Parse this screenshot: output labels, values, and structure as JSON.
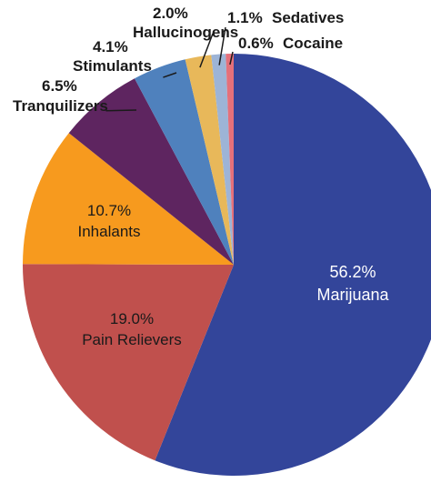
{
  "chart_data": {
    "type": "pie",
    "slices": [
      {
        "label": "Marijuana",
        "pct_label": "56.2%",
        "value": 56.2,
        "color": "#33459a"
      },
      {
        "label": "Pain Relievers",
        "pct_label": "19.0%",
        "value": 19.0,
        "color": "#c0504d"
      },
      {
        "label": "Inhalants",
        "pct_label": "10.7%",
        "value": 10.7,
        "color": "#f79a1e"
      },
      {
        "label": "Tranquilizers",
        "pct_label": "6.5%",
        "value": 6.5,
        "color": "#5e2560"
      },
      {
        "label": "Stimulants",
        "pct_label": "4.1%",
        "value": 4.1,
        "color": "#4f81bd"
      },
      {
        "label": "Hallucinogens",
        "pct_label": "2.0%",
        "value": 2.0,
        "color": "#e8b85a"
      },
      {
        "label": "Sedatives",
        "pct_label": "1.1%",
        "value": 1.1,
        "color": "#9db4d6"
      },
      {
        "label": "Cocaine",
        "pct_label": "0.6%",
        "value": 0.6,
        "color": "#e5707a"
      }
    ]
  }
}
